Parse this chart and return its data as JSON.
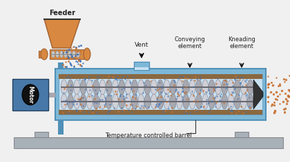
{
  "bg_color": "#f0f0f0",
  "barrel_blue": "#7eb8d8",
  "barrel_dark_blue": "#5090b8",
  "barrel_inner": "#c8e0f0",
  "barrel_brown_top": "#8b6840",
  "barrel_brown_bot": "#8b6840",
  "frame_gray": "#a8b0b8",
  "frame_dark": "#888890",
  "feeder_orange": "#d88840",
  "motor_blue": "#4878a8",
  "motor_dark": "#204060",
  "screw_light": "#d0d0d8",
  "screw_mid": "#a8a8b0",
  "screw_dark": "#686870",
  "dot_blue": "#3870b8",
  "dot_orange": "#c87030",
  "white": "#ffffff",
  "text_dark": "#222222",
  "labels": {
    "feeder": "Feeder",
    "motor": "Motor",
    "vent": "Vent",
    "conveying": "Conveying\nelement",
    "kneading": "Kneading\nelement",
    "temp_barrel": "Temperature controlled barrel"
  },
  "figsize": [
    4.2,
    2.36
  ],
  "dpi": 100
}
